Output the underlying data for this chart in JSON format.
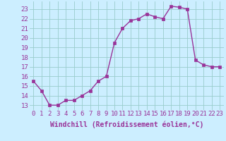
{
  "x": [
    0,
    1,
    2,
    3,
    4,
    5,
    6,
    7,
    8,
    9,
    10,
    11,
    12,
    13,
    14,
    15,
    16,
    17,
    18,
    19,
    20,
    21,
    22,
    23
  ],
  "y": [
    15.5,
    14.5,
    13.0,
    13.0,
    13.5,
    13.5,
    14.0,
    14.5,
    15.5,
    16.0,
    19.5,
    21.0,
    21.8,
    22.0,
    22.5,
    22.2,
    22.0,
    23.3,
    23.2,
    23.0,
    17.7,
    17.2,
    17.0,
    17.0
  ],
  "line_color": "#993399",
  "marker": "s",
  "markersize": 2.5,
  "linewidth": 1.0,
  "background_color": "#cceeff",
  "grid_color": "#99cccc",
  "xlabel": "Windchill (Refroidissement éolien,°C)",
  "xlabel_fontsize": 7,
  "tick_fontsize": 6.5,
  "ylim": [
    12.5,
    23.8
  ],
  "xlim": [
    -0.5,
    23.5
  ],
  "yticks": [
    13,
    14,
    15,
    16,
    17,
    18,
    19,
    20,
    21,
    22,
    23
  ],
  "xticks": [
    0,
    1,
    2,
    3,
    4,
    5,
    6,
    7,
    8,
    9,
    10,
    11,
    12,
    13,
    14,
    15,
    16,
    17,
    18,
    19,
    20,
    21,
    22,
    23
  ]
}
